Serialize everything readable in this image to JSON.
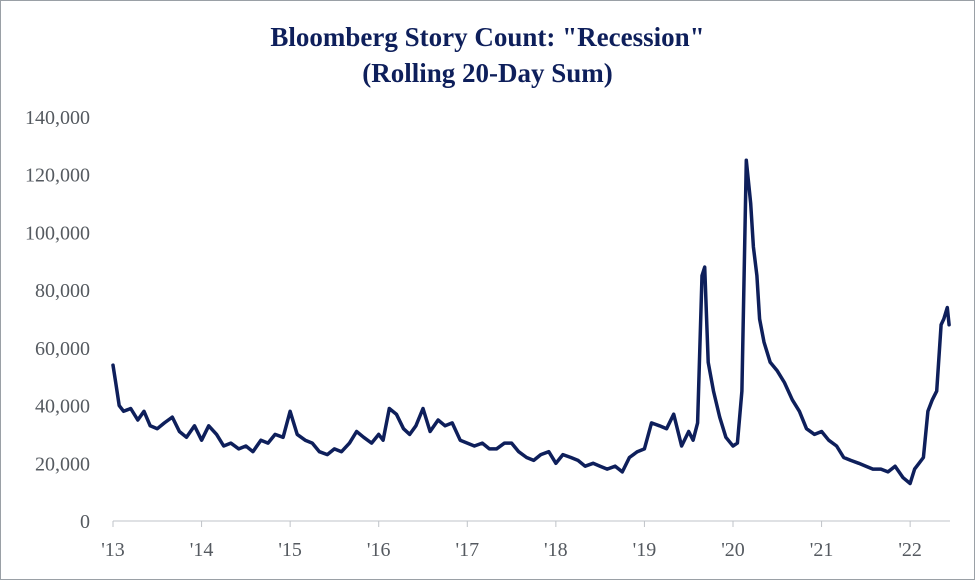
{
  "chart_data": {
    "type": "line",
    "title": "Bloomberg Story Count: \"Recession\"",
    "subtitle": "(Rolling 20-Day Sum)",
    "xlabel": "",
    "ylabel": "",
    "ylim": [
      0,
      140000
    ],
    "y_ticks": [
      "0",
      "20,000",
      "40,000",
      "60,000",
      "80,000",
      "100,000",
      "120,000",
      "140,000"
    ],
    "x_ticks": [
      "'13",
      "'14",
      "'15",
      "'16",
      "'17",
      "'18",
      "'19",
      "'20",
      "'21",
      "'22"
    ],
    "x_tick_years": [
      2013,
      2014,
      2015,
      2016,
      2017,
      2018,
      2019,
      2020,
      2021,
      2022
    ],
    "grid": false,
    "legend": "none",
    "line_color": "#0e1f5b",
    "series": [
      {
        "x": [
          2013.0,
          2013.03,
          2013.07,
          2013.12,
          2013.2,
          2013.28,
          2013.35,
          2013.42,
          2013.5,
          2013.58,
          2013.67,
          2013.75,
          2013.83,
          2013.92,
          2014.0,
          2014.08,
          2014.17,
          2014.25,
          2014.33,
          2014.42,
          2014.5,
          2014.58,
          2014.67,
          2014.75,
          2014.83,
          2014.92,
          2015.0,
          2015.08,
          2015.17,
          2015.25,
          2015.33,
          2015.42,
          2015.5,
          2015.58,
          2015.67,
          2015.75,
          2015.83,
          2015.92,
          2016.0,
          2016.05,
          2016.12,
          2016.2,
          2016.28,
          2016.35,
          2016.42,
          2016.5,
          2016.58,
          2016.67,
          2016.75,
          2016.83,
          2016.92,
          2017.0,
          2017.08,
          2017.17,
          2017.25,
          2017.33,
          2017.42,
          2017.5,
          2017.58,
          2017.67,
          2017.75,
          2017.83,
          2017.92,
          2018.0,
          2018.08,
          2018.17,
          2018.25,
          2018.33,
          2018.42,
          2018.5,
          2018.58,
          2018.67,
          2018.75,
          2018.83,
          2018.92,
          2019.0,
          2019.08,
          2019.17,
          2019.25,
          2019.33,
          2019.42,
          2019.5,
          2019.55,
          2019.6,
          2019.65,
          2019.68,
          2019.72,
          2019.78,
          2019.85,
          2019.92,
          2020.0,
          2020.05,
          2020.1,
          2020.15,
          2020.2,
          2020.23,
          2020.27,
          2020.3,
          2020.35,
          2020.42,
          2020.5,
          2020.58,
          2020.67,
          2020.75,
          2020.83,
          2020.92,
          2021.0,
          2021.08,
          2021.17,
          2021.25,
          2021.33,
          2021.42,
          2021.5,
          2021.58,
          2021.67,
          2021.75,
          2021.83,
          2021.92,
          2022.0,
          2022.05,
          2022.1,
          2022.15,
          2022.2,
          2022.25,
          2022.3,
          2022.35,
          2022.38,
          2022.42,
          2022.44
        ],
        "values": [
          54000,
          48000,
          40000,
          38000,
          39000,
          35000,
          38000,
          33000,
          32000,
          34000,
          36000,
          31000,
          29000,
          33000,
          28000,
          33000,
          30000,
          26000,
          27000,
          25000,
          26000,
          24000,
          28000,
          27000,
          30000,
          29000,
          38000,
          30000,
          28000,
          27000,
          24000,
          23000,
          25000,
          24000,
          27000,
          31000,
          29000,
          27000,
          30000,
          28000,
          39000,
          37000,
          32000,
          30000,
          33000,
          39000,
          31000,
          35000,
          33000,
          34000,
          28000,
          27000,
          26000,
          27000,
          25000,
          25000,
          27000,
          27000,
          24000,
          22000,
          21000,
          23000,
          24000,
          20000,
          23000,
          22000,
          21000,
          19000,
          20000,
          19000,
          18000,
          19000,
          17000,
          22000,
          24000,
          25000,
          34000,
          33000,
          32000,
          37000,
          26000,
          31000,
          28000,
          34000,
          85000,
          88000,
          55000,
          45000,
          36000,
          29000,
          26000,
          27000,
          45000,
          125000,
          110000,
          95000,
          85000,
          70000,
          62000,
          55000,
          52000,
          48000,
          42000,
          38000,
          32000,
          30000,
          31000,
          28000,
          26000,
          22000,
          21000,
          20000,
          19000,
          18000,
          18000,
          17000,
          19000,
          15000,
          13000,
          18000,
          20000,
          22000,
          38000,
          42000,
          45000,
          68000,
          70000,
          74000,
          68000
        ]
      }
    ]
  }
}
